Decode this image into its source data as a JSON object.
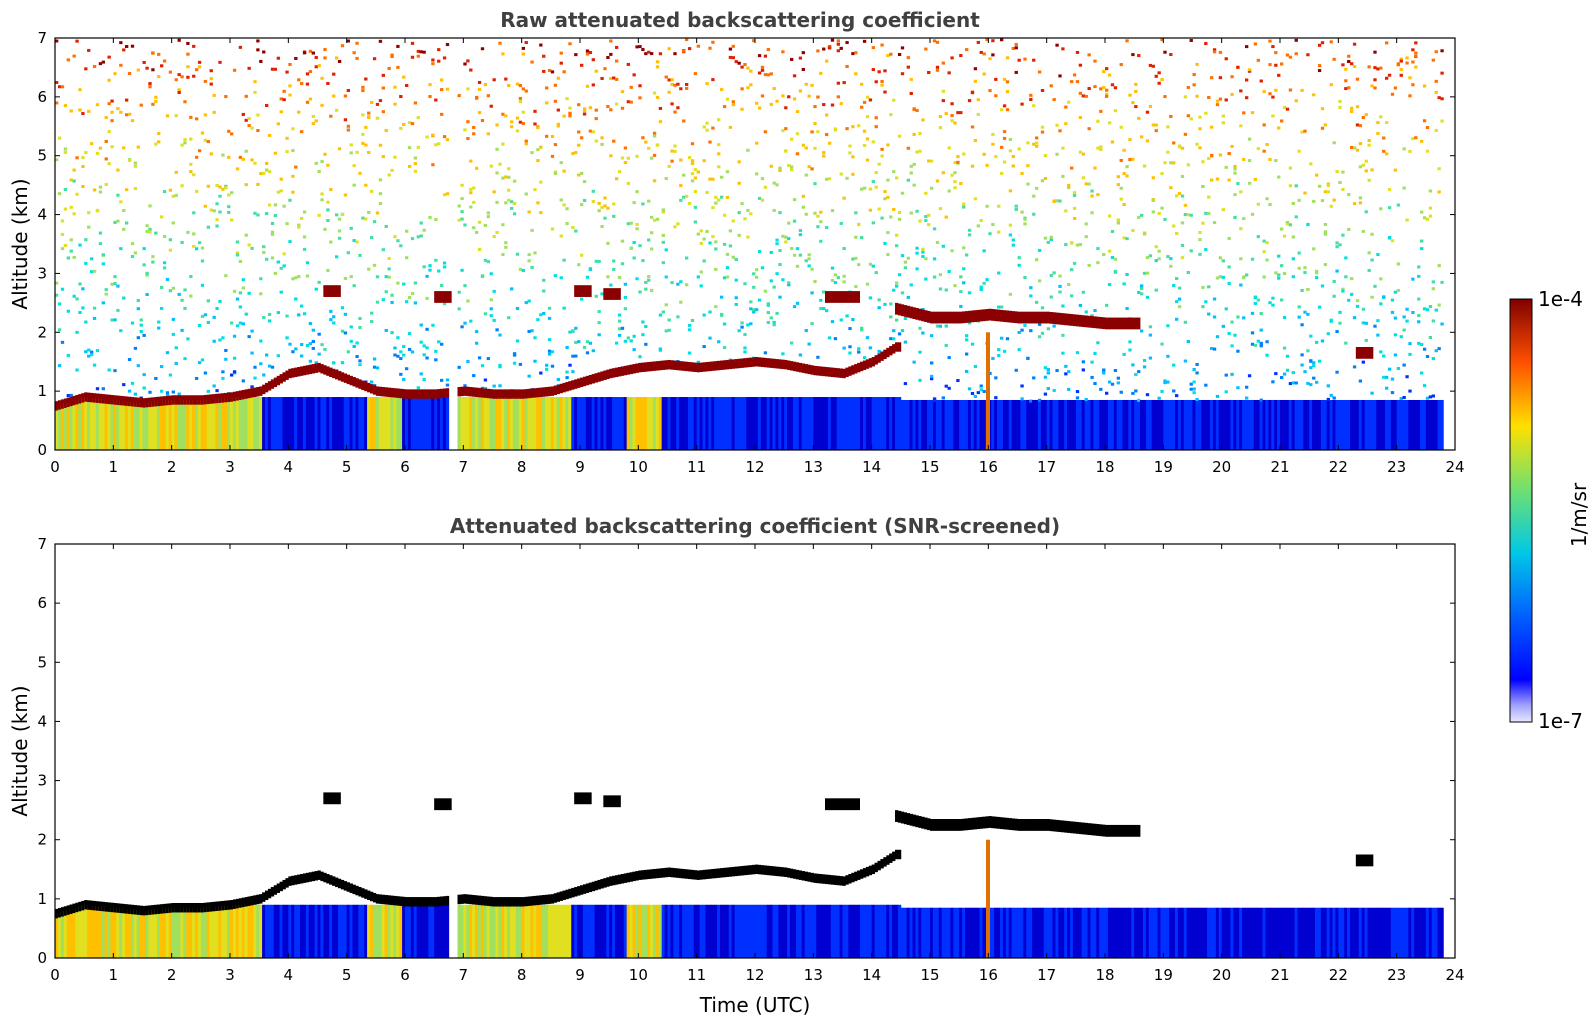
{
  "chart_data": [
    {
      "type": "heatmap",
      "title": "Raw attenuated backscattering coefficient",
      "xlabel": "",
      "ylabel": "Altitude (km)",
      "xlim": [
        0,
        24
      ],
      "ylim": [
        0,
        7
      ],
      "xticks": [
        "0",
        "1",
        "2",
        "3",
        "4",
        "5",
        "6",
        "7",
        "8",
        "9",
        "10",
        "11",
        "12",
        "13",
        "14",
        "15",
        "16",
        "17",
        "18",
        "19",
        "20",
        "21",
        "22",
        "23",
        "24"
      ],
      "yticks": [
        "0",
        "1",
        "2",
        "3",
        "4",
        "5",
        "6",
        "7"
      ],
      "data_end_hour": 23.8,
      "gap_hours": [
        6.72,
        6.85
      ],
      "boundary_layer_top_km": [
        [
          0.0,
          0.75
        ],
        [
          0.5,
          0.9
        ],
        [
          1.0,
          0.85
        ],
        [
          1.5,
          0.8
        ],
        [
          2.0,
          0.85
        ],
        [
          2.5,
          0.85
        ],
        [
          3.0,
          0.9
        ],
        [
          3.5,
          1.0
        ],
        [
          4.0,
          1.3
        ],
        [
          4.5,
          1.4
        ],
        [
          5.0,
          1.2
        ],
        [
          5.5,
          1.0
        ],
        [
          6.0,
          0.95
        ],
        [
          6.5,
          0.95
        ],
        [
          7.0,
          1.0
        ],
        [
          7.5,
          0.95
        ],
        [
          8.0,
          0.95
        ],
        [
          8.5,
          1.0
        ],
        [
          9.0,
          1.15
        ],
        [
          9.5,
          1.3
        ],
        [
          10.0,
          1.4
        ],
        [
          10.5,
          1.45
        ],
        [
          11.0,
          1.4
        ],
        [
          11.5,
          1.45
        ],
        [
          12.0,
          1.5
        ],
        [
          12.5,
          1.45
        ],
        [
          13.0,
          1.35
        ],
        [
          13.5,
          1.3
        ],
        [
          14.0,
          1.5
        ],
        [
          14.4,
          1.75
        ]
      ],
      "elevated_layer_km": [
        [
          14.4,
          2.4
        ],
        [
          15.0,
          2.25
        ],
        [
          15.5,
          2.25
        ],
        [
          16.0,
          2.3
        ],
        [
          16.5,
          2.25
        ],
        [
          17.0,
          2.25
        ],
        [
          17.5,
          2.2
        ],
        [
          18.0,
          2.15
        ],
        [
          18.6,
          2.15
        ]
      ],
      "aerosol_patches": [
        [
          8.9,
          2.7
        ],
        [
          9.4,
          2.65
        ],
        [
          13.2,
          2.6
        ],
        [
          13.5,
          2.6
        ],
        [
          4.6,
          2.7
        ],
        [
          6.5,
          2.6
        ],
        [
          22.3,
          1.65
        ]
      ],
      "colorbar": {
        "label": "1/m/sr",
        "min_label": "1e-7",
        "max_label": "1e-4",
        "scale": "log"
      }
    },
    {
      "type": "heatmap",
      "title": "Attenuated backscattering coefficient (SNR-screened)",
      "xlabel": "Time (UTC)",
      "ylabel": "Altitude (km)",
      "xlim": [
        0,
        24
      ],
      "ylim": [
        0,
        7
      ],
      "xticks": [
        "0",
        "1",
        "2",
        "3",
        "4",
        "5",
        "6",
        "7",
        "8",
        "9",
        "10",
        "11",
        "12",
        "13",
        "14",
        "15",
        "16",
        "17",
        "18",
        "19",
        "20",
        "21",
        "22",
        "23",
        "24"
      ],
      "yticks": [
        "0",
        "1",
        "2",
        "3",
        "4",
        "5",
        "6",
        "7"
      ],
      "data_end_hour": 23.8,
      "screened_color": "#ffffff",
      "layer_color": "#000000"
    }
  ],
  "colors": {
    "low": "#0000ff",
    "mid": "#00c8c8",
    "high": "#ffd000",
    "max": "#800000",
    "layer_raw": "#8b0000",
    "layer_screened": "#000000"
  }
}
